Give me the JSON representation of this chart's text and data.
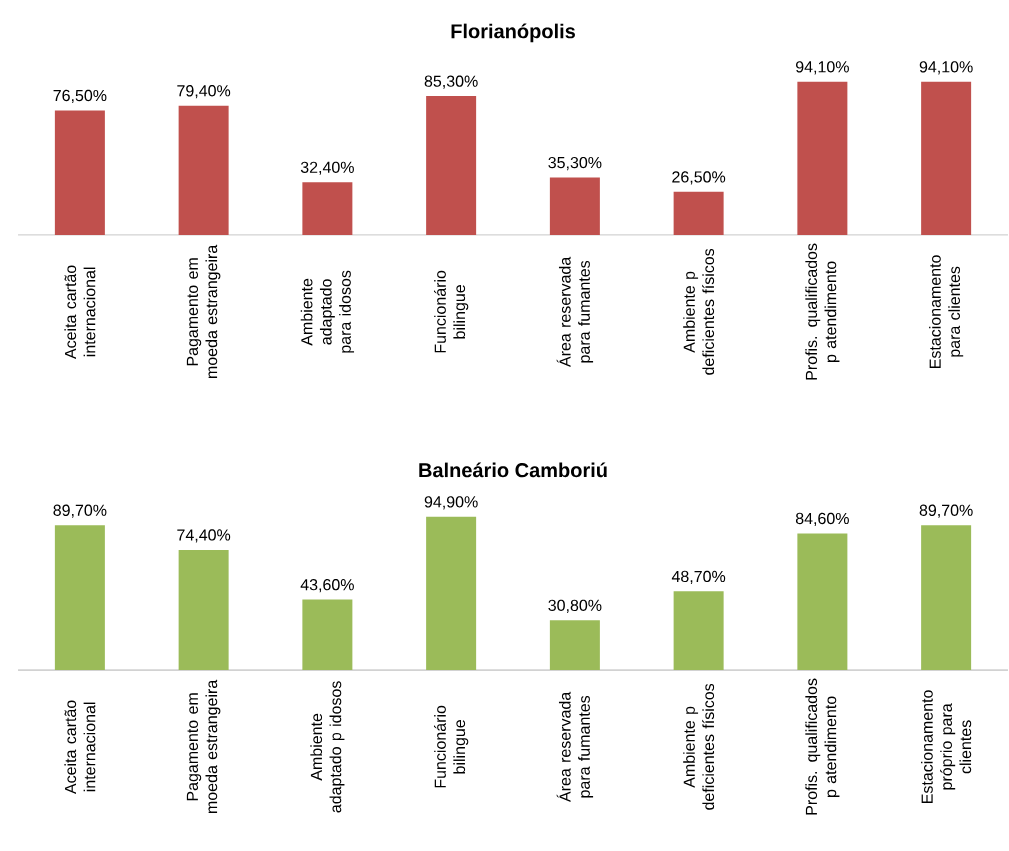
{
  "chart_data": [
    {
      "type": "bar",
      "title": "Florianópolis",
      "color": "#c0504d",
      "categories": [
        "Aceita cartão internacional",
        "Pagamento em moeda estrangeira",
        "Ambiente adaptado para idosos",
        "Funcionário bilingue",
        "Área reservada para fumantes",
        "Ambiente p deficientes físicos",
        "Profis. qualificados p atendimento",
        "Estacionamento para clientes"
      ],
      "values": [
        76.5,
        79.4,
        32.4,
        85.3,
        35.3,
        26.5,
        94.1,
        94.1
      ],
      "value_labels": [
        "76,50%",
        "79,40%",
        "32,40%",
        "85,30%",
        "35,30%",
        "26,50%",
        "94,10%",
        "94,10%"
      ]
    },
    {
      "type": "bar",
      "title": "Balneário Camboriú",
      "color": "#9bbb59",
      "categories": [
        "Aceita cartão internacional",
        "Pagamento em moeda estrangeira",
        "Ambiente adaptado p idosos",
        "Funcionário bilingue",
        "Área reservada para fumantes",
        "Ambiente p deficientes físicos",
        "Profis. qualificados p atendimento",
        "Estacionamento próprio para clientes"
      ],
      "values": [
        89.7,
        74.4,
        43.6,
        94.9,
        30.8,
        48.7,
        84.6,
        89.7
      ],
      "value_labels": [
        "89,70%",
        "74,40%",
        "43,60%",
        "94,90%",
        "30,80%",
        "48,70%",
        "84,60%",
        "89,70%"
      ]
    }
  ]
}
